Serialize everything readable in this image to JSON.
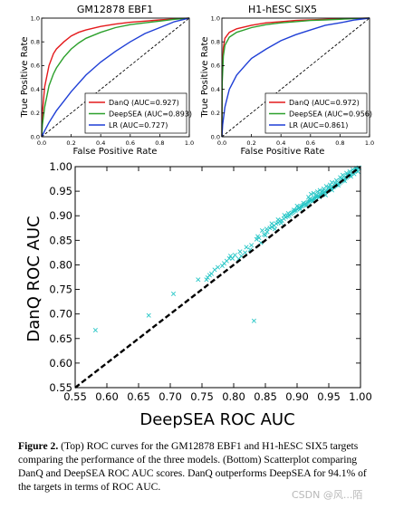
{
  "chart_data": [
    {
      "type": "line",
      "title": "GM12878 EBF1",
      "xlabel": "False Positive Rate",
      "ylabel": "True Positive Rate",
      "xlim": [
        0,
        1
      ],
      "ylim": [
        0,
        1
      ],
      "xticks": [
        "0.0",
        "0.2",
        "0.4",
        "0.6",
        "0.8",
        "1.0"
      ],
      "yticks": [
        "0.0",
        "0.2",
        "0.4",
        "0.6",
        "0.8",
        "1.0"
      ],
      "legend_position": "lower-right",
      "series": [
        {
          "name": "DanQ (AUC=0.927)",
          "color": "#e41a1c",
          "x": [
            0,
            0.005,
            0.02,
            0.05,
            0.08,
            0.1,
            0.15,
            0.2,
            0.25,
            0.3,
            0.4,
            0.5,
            0.6,
            0.7,
            0.8,
            0.9,
            1.0
          ],
          "y": [
            0,
            0.2,
            0.42,
            0.6,
            0.7,
            0.74,
            0.8,
            0.85,
            0.88,
            0.9,
            0.93,
            0.95,
            0.965,
            0.975,
            0.985,
            0.993,
            1.0
          ]
        },
        {
          "name": "DeepSEA (AUC=0.893)",
          "color": "#2ca02c",
          "x": [
            0,
            0.005,
            0.02,
            0.05,
            0.08,
            0.1,
            0.15,
            0.2,
            0.25,
            0.3,
            0.4,
            0.5,
            0.6,
            0.7,
            0.8,
            0.9,
            1.0
          ],
          "y": [
            0,
            0.1,
            0.25,
            0.43,
            0.53,
            0.58,
            0.67,
            0.74,
            0.79,
            0.83,
            0.88,
            0.92,
            0.945,
            0.96,
            0.975,
            0.99,
            1.0
          ]
        },
        {
          "name": "LR (AUC=0.727)",
          "color": "#1f3fd6",
          "x": [
            0,
            0.02,
            0.05,
            0.1,
            0.15,
            0.2,
            0.3,
            0.4,
            0.5,
            0.6,
            0.7,
            0.8,
            0.9,
            1.0
          ],
          "y": [
            0,
            0.05,
            0.12,
            0.22,
            0.3,
            0.38,
            0.52,
            0.63,
            0.72,
            0.8,
            0.87,
            0.92,
            0.97,
            1.0
          ]
        }
      ]
    },
    {
      "type": "line",
      "title": "H1-hESC SIX5",
      "xlabel": "False Positive Rate",
      "ylabel": "True Positive Rate",
      "xlim": [
        0,
        1
      ],
      "ylim": [
        0,
        1
      ],
      "xticks": [
        "0.0",
        "0.2",
        "0.4",
        "0.6",
        "0.8",
        "1.0"
      ],
      "yticks": [
        "0.0",
        "0.2",
        "0.4",
        "0.6",
        "0.8",
        "1.0"
      ],
      "legend_position": "lower-right",
      "series": [
        {
          "name": "DanQ (AUC=0.972)",
          "color": "#e41a1c",
          "x": [
            0,
            0.002,
            0.01,
            0.02,
            0.05,
            0.1,
            0.2,
            0.3,
            0.4,
            0.5,
            0.6,
            0.7,
            0.8,
            0.9,
            1.0
          ],
          "y": [
            0,
            0.55,
            0.75,
            0.83,
            0.88,
            0.91,
            0.94,
            0.96,
            0.97,
            0.98,
            0.985,
            0.99,
            0.995,
            0.998,
            1.0
          ]
        },
        {
          "name": "DeepSEA (AUC=0.956)",
          "color": "#2ca02c",
          "x": [
            0,
            0.002,
            0.01,
            0.02,
            0.05,
            0.1,
            0.2,
            0.3,
            0.4,
            0.5,
            0.6,
            0.7,
            0.8,
            0.9,
            1.0
          ],
          "y": [
            0,
            0.45,
            0.68,
            0.77,
            0.84,
            0.88,
            0.92,
            0.945,
            0.96,
            0.97,
            0.98,
            0.985,
            0.99,
            0.997,
            1.0
          ]
        },
        {
          "name": "LR (AUC=0.861)",
          "color": "#1f3fd6",
          "x": [
            0,
            0.005,
            0.02,
            0.05,
            0.1,
            0.15,
            0.2,
            0.3,
            0.4,
            0.5,
            0.6,
            0.7,
            0.8,
            0.9,
            1.0
          ],
          "y": [
            0,
            0.1,
            0.25,
            0.4,
            0.52,
            0.59,
            0.66,
            0.74,
            0.81,
            0.86,
            0.9,
            0.94,
            0.96,
            0.985,
            1.0
          ]
        }
      ]
    },
    {
      "type": "scatter",
      "title": "",
      "xlabel": "DeepSEA ROC AUC",
      "ylabel": "DanQ ROC AUC",
      "xlim": [
        0.55,
        1.0
      ],
      "ylim": [
        0.55,
        1.0
      ],
      "xticks": [
        "0.55",
        "0.60",
        "0.65",
        "0.70",
        "0.75",
        "0.80",
        "0.85",
        "0.90",
        "0.95",
        "1.00"
      ],
      "yticks": [
        "0.55",
        "0.60",
        "0.65",
        "0.70",
        "0.75",
        "0.80",
        "0.85",
        "0.90",
        "0.95",
        "1.00"
      ],
      "marker": "x",
      "marker_color": "#26c6c6",
      "diagonal": "dashed",
      "points": [
        [
          0.582,
          0.667
        ],
        [
          0.666,
          0.697
        ],
        [
          0.705,
          0.741
        ],
        [
          0.744,
          0.77
        ],
        [
          0.757,
          0.77
        ],
        [
          0.759,
          0.774
        ],
        [
          0.765,
          0.782
        ],
        [
          0.775,
          0.795
        ],
        [
          0.782,
          0.798
        ],
        [
          0.789,
          0.808
        ],
        [
          0.793,
          0.813
        ],
        [
          0.798,
          0.813
        ],
        [
          0.802,
          0.82
        ],
        [
          0.808,
          0.812
        ],
        [
          0.812,
          0.818
        ],
        [
          0.818,
          0.825
        ],
        [
          0.826,
          0.831
        ],
        [
          0.832,
          0.686
        ],
        [
          0.836,
          0.852
        ],
        [
          0.84,
          0.855
        ],
        [
          0.845,
          0.87
        ],
        [
          0.85,
          0.86
        ],
        [
          0.853,
          0.867
        ],
        [
          0.857,
          0.875
        ],
        [
          0.86,
          0.877
        ],
        [
          0.864,
          0.88
        ],
        [
          0.867,
          0.884
        ],
        [
          0.87,
          0.886
        ],
        [
          0.873,
          0.889
        ],
        [
          0.876,
          0.89
        ],
        [
          0.879,
          0.894
        ],
        [
          0.882,
          0.897
        ],
        [
          0.885,
          0.899
        ],
        [
          0.886,
          0.905
        ],
        [
          0.888,
          0.9
        ],
        [
          0.89,
          0.904
        ],
        [
          0.892,
          0.906
        ],
        [
          0.894,
          0.908
        ],
        [
          0.896,
          0.91
        ],
        [
          0.898,
          0.911
        ],
        [
          0.9,
          0.913
        ],
        [
          0.902,
          0.915
        ],
        [
          0.904,
          0.917
        ],
        [
          0.906,
          0.919
        ],
        [
          0.908,
          0.92
        ],
        [
          0.91,
          0.922
        ],
        [
          0.912,
          0.923
        ],
        [
          0.914,
          0.925
        ],
        [
          0.916,
          0.927
        ],
        [
          0.918,
          0.928
        ],
        [
          0.92,
          0.93
        ],
        [
          0.922,
          0.931
        ],
        [
          0.924,
          0.933
        ],
        [
          0.926,
          0.935
        ],
        [
          0.928,
          0.936
        ],
        [
          0.93,
          0.938
        ],
        [
          0.932,
          0.939
        ],
        [
          0.934,
          0.94
        ],
        [
          0.936,
          0.942
        ],
        [
          0.938,
          0.944
        ],
        [
          0.94,
          0.945
        ],
        [
          0.942,
          0.947
        ],
        [
          0.944,
          0.948
        ],
        [
          0.946,
          0.95
        ],
        [
          0.948,
          0.951
        ],
        [
          0.95,
          0.953
        ],
        [
          0.952,
          0.955
        ],
        [
          0.954,
          0.956
        ],
        [
          0.956,
          0.958
        ],
        [
          0.958,
          0.959
        ],
        [
          0.96,
          0.961
        ],
        [
          0.962,
          0.963
        ],
        [
          0.964,
          0.964
        ],
        [
          0.966,
          0.966
        ],
        [
          0.968,
          0.968
        ],
        [
          0.97,
          0.97
        ],
        [
          0.972,
          0.972
        ],
        [
          0.974,
          0.974
        ],
        [
          0.976,
          0.976
        ],
        [
          0.978,
          0.978
        ],
        [
          0.98,
          0.981
        ],
        [
          0.982,
          0.982
        ],
        [
          0.984,
          0.984
        ],
        [
          0.986,
          0.986
        ],
        [
          0.988,
          0.988
        ],
        [
          0.99,
          0.991
        ],
        [
          0.992,
          0.993
        ],
        [
          0.994,
          0.994
        ],
        [
          0.996,
          0.997
        ],
        [
          0.998,
          0.998
        ],
        [
          0.93,
          0.942
        ],
        [
          0.935,
          0.938
        ],
        [
          0.94,
          0.95
        ],
        [
          0.945,
          0.942
        ],
        [
          0.95,
          0.958
        ],
        [
          0.955,
          0.952
        ],
        [
          0.96,
          0.966
        ],
        [
          0.965,
          0.962
        ],
        [
          0.97,
          0.976
        ],
        [
          0.975,
          0.971
        ],
        [
          0.98,
          0.984
        ],
        [
          0.985,
          0.98
        ],
        [
          0.91,
          0.926
        ],
        [
          0.915,
          0.921
        ],
        [
          0.92,
          0.934
        ],
        [
          0.925,
          0.93
        ],
        [
          0.88,
          0.901
        ],
        [
          0.895,
          0.912
        ],
        [
          0.9,
          0.92
        ],
        [
          0.905,
          0.914
        ],
        [
          0.87,
          0.892
        ],
        [
          0.875,
          0.885
        ],
        [
          0.86,
          0.884
        ],
        [
          0.865,
          0.873
        ],
        [
          0.955,
          0.968
        ],
        [
          0.962,
          0.972
        ],
        [
          0.968,
          0.978
        ],
        [
          0.972,
          0.983
        ],
        [
          0.978,
          0.987
        ],
        [
          0.983,
          0.99
        ],
        [
          0.988,
          0.994
        ],
        [
          0.99,
          0.985
        ],
        [
          0.993,
          0.997
        ],
        [
          0.996,
          0.99
        ],
        [
          0.946,
          0.96
        ],
        [
          0.952,
          0.963
        ],
        [
          0.936,
          0.952
        ],
        [
          0.942,
          0.955
        ],
        [
          0.926,
          0.946
        ],
        [
          0.932,
          0.949
        ],
        [
          0.918,
          0.938
        ],
        [
          0.922,
          0.944
        ],
        [
          0.848,
          0.862
        ],
        [
          0.852,
          0.873
        ],
        [
          0.838,
          0.858
        ],
        [
          0.843,
          0.845
        ],
        [
          0.828,
          0.84
        ],
        [
          0.82,
          0.836
        ],
        [
          0.81,
          0.827
        ],
        [
          0.795,
          0.818
        ],
        [
          0.785,
          0.803
        ],
        [
          0.77,
          0.79
        ],
        [
          0.762,
          0.779
        ]
      ]
    }
  ],
  "caption": {
    "label": "Figure 2.",
    "text": " (Top) ROC curves for the GM12878 EBF1 and H1-hESC SIX5 targets comparing the performance of the three models. (Bottom) Scatterplot comparing DanQ and DeepSEA ROC AUC scores. DanQ outperforms DeepSEA for 94.1% of the targets in terms of ROC AUC."
  },
  "watermark": "CSDN @风...陌"
}
